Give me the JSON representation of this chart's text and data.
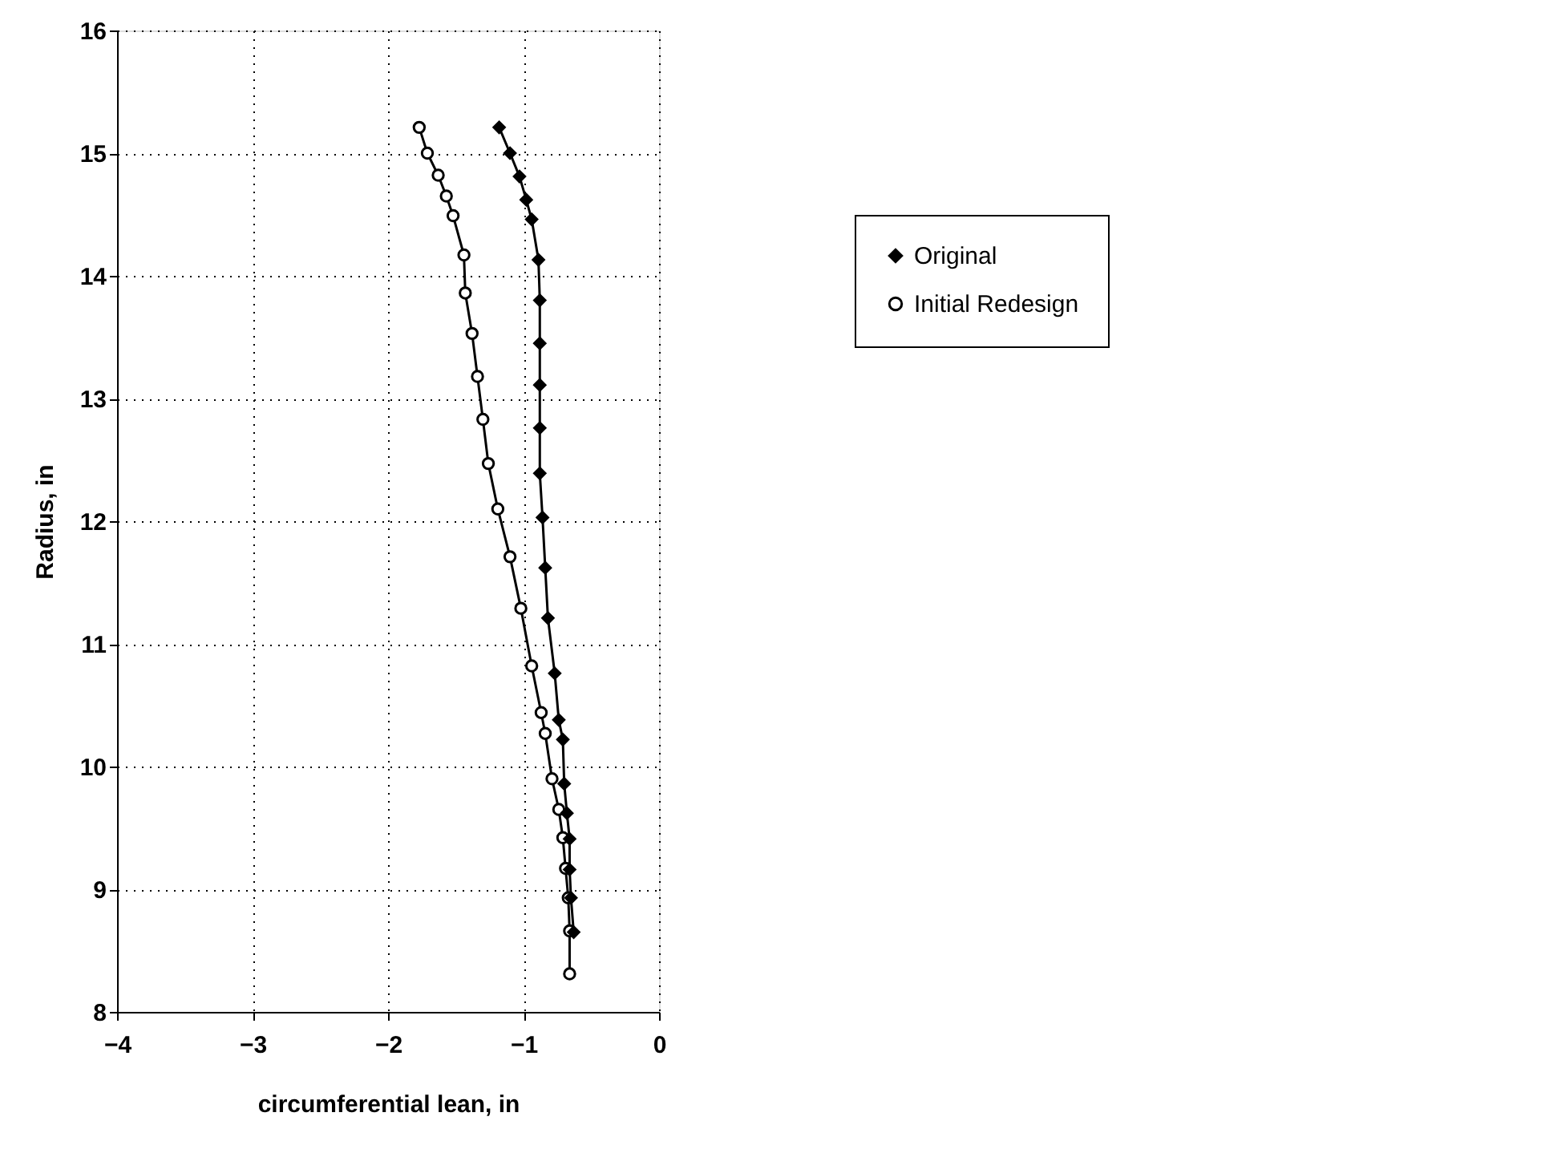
{
  "chart_data": {
    "type": "line",
    "xlabel": "circumferential lean, in",
    "ylabel": "Radius, in",
    "xlim": [
      -4,
      0
    ],
    "xticks": [
      -4,
      -3,
      -2,
      -1,
      0
    ],
    "ylim": [
      8,
      16
    ],
    "yticks": [
      8,
      9,
      10,
      11,
      12,
      13,
      14,
      15,
      16
    ],
    "grid": true,
    "legend": "right",
    "line_style": "solid",
    "series": [
      {
        "name": "Original",
        "color": "#000000",
        "marker": "diamond",
        "x": [
          -1.18,
          -1.1,
          -1.03,
          -0.98,
          -0.94,
          -0.89,
          -0.88,
          -0.88,
          -0.88,
          -0.88,
          -0.88,
          -0.86,
          -0.84,
          -0.82,
          -0.77,
          -0.74,
          -0.71,
          -0.7,
          -0.68,
          -0.66,
          -0.66,
          -0.65,
          -0.63
        ],
        "values": [
          15.21,
          15.0,
          14.81,
          14.62,
          14.46,
          14.13,
          13.8,
          13.45,
          13.11,
          12.76,
          12.39,
          12.03,
          11.62,
          11.21,
          10.76,
          10.38,
          10.22,
          9.86,
          9.62,
          9.41,
          9.16,
          8.93,
          8.65
        ]
      },
      {
        "name": "Initial Redesign",
        "color": "#000000",
        "marker": "circle",
        "x": [
          -1.77,
          -1.71,
          -1.63,
          -1.57,
          -1.52,
          -1.44,
          -1.43,
          -1.38,
          -1.34,
          -1.3,
          -1.26,
          -1.19,
          -1.1,
          -1.02,
          -0.94,
          -0.87,
          -0.84,
          -0.79,
          -0.74,
          -0.71,
          -0.69,
          -0.67,
          -0.66,
          -0.66
        ],
        "values": [
          15.21,
          15.0,
          14.82,
          14.65,
          14.49,
          14.17,
          13.86,
          13.53,
          13.18,
          12.83,
          12.47,
          12.1,
          11.71,
          11.29,
          10.82,
          10.44,
          10.27,
          9.9,
          9.65,
          9.42,
          9.17,
          8.93,
          8.66,
          8.31
        ]
      }
    ]
  }
}
